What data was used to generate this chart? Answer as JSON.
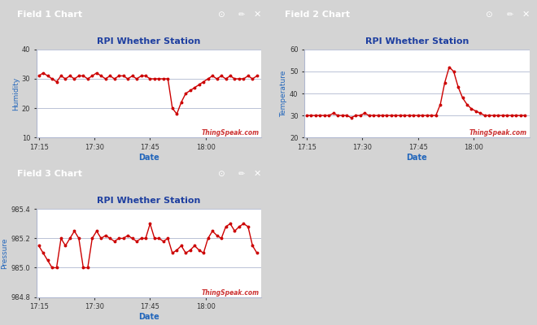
{
  "title": "RPI Whether Station",
  "xlabel": "Date",
  "chart1_ylabel": "Humidity",
  "chart2_ylabel": "Temperature",
  "chart3_ylabel": "Pressure",
  "chart1_title": "Field 1 Chart",
  "chart2_title": "Field 2 Chart",
  "chart3_title": "Field 3 Chart",
  "watermark": "ThingSpeak.com",
  "header_color": "#1e3fa0",
  "header_text_color": "#ffffff",
  "line_color": "#cc0000",
  "grid_color": "#b0b8d0",
  "background_color": "#ffffff",
  "panel_bg": "#ffffff",
  "outer_bg": "#d4d4d4",
  "ylabel_color": "#2266bb",
  "xlabel_color": "#2266bb",
  "title_color": "#1e3fa0",
  "watermark_color": "#cc3333",
  "xtick_labels": [
    "17:15",
    "17:30",
    "17:45",
    "18:00"
  ],
  "xtick_positions": [
    0.0,
    0.25,
    0.5,
    0.75
  ],
  "humidity_ylim": [
    10,
    40
  ],
  "humidity_yticks": [
    10,
    20,
    30,
    40
  ],
  "temperature_ylim": [
    20,
    60
  ],
  "temperature_yticks": [
    20,
    30,
    40,
    50,
    60
  ],
  "pressure_ylim": [
    984.8,
    985.4
  ],
  "pressure_yticks": [
    984.8,
    985.0,
    985.2,
    985.4
  ],
  "humidity_x": [
    0.0,
    0.02,
    0.04,
    0.06,
    0.08,
    0.1,
    0.12,
    0.14,
    0.16,
    0.18,
    0.2,
    0.22,
    0.24,
    0.26,
    0.28,
    0.3,
    0.32,
    0.34,
    0.36,
    0.38,
    0.4,
    0.42,
    0.44,
    0.46,
    0.48,
    0.5,
    0.52,
    0.54,
    0.56,
    0.58,
    0.6,
    0.62,
    0.64,
    0.66,
    0.68,
    0.7,
    0.72,
    0.74,
    0.76,
    0.78,
    0.8,
    0.82,
    0.84,
    0.86,
    0.88,
    0.9,
    0.92,
    0.94,
    0.96,
    0.98
  ],
  "humidity_y": [
    31,
    32,
    31,
    30,
    29,
    31,
    30,
    31,
    30,
    31,
    31,
    30,
    31,
    32,
    31,
    30,
    31,
    30,
    31,
    31,
    30,
    31,
    30,
    31,
    31,
    30,
    30,
    30,
    30,
    30,
    20,
    18,
    22,
    25,
    26,
    27,
    28,
    29,
    30,
    31,
    30,
    31,
    30,
    31,
    30,
    30,
    30,
    31,
    30,
    31
  ],
  "temperature_x": [
    0.0,
    0.02,
    0.04,
    0.06,
    0.08,
    0.1,
    0.12,
    0.14,
    0.16,
    0.18,
    0.2,
    0.22,
    0.24,
    0.26,
    0.28,
    0.3,
    0.32,
    0.34,
    0.36,
    0.38,
    0.4,
    0.42,
    0.44,
    0.46,
    0.48,
    0.5,
    0.52,
    0.54,
    0.56,
    0.58,
    0.6,
    0.62,
    0.64,
    0.66,
    0.68,
    0.7,
    0.72,
    0.74,
    0.76,
    0.78,
    0.8,
    0.82,
    0.84,
    0.86,
    0.88,
    0.9,
    0.92,
    0.94,
    0.96,
    0.98
  ],
  "temperature_y": [
    30,
    30,
    30,
    30,
    30,
    30,
    31,
    30,
    30,
    30,
    29,
    30,
    30,
    31,
    30,
    30,
    30,
    30,
    30,
    30,
    30,
    30,
    30,
    30,
    30,
    30,
    30,
    30,
    30,
    30,
    35,
    45,
    52,
    50,
    43,
    38,
    35,
    33,
    32,
    31,
    30,
    30,
    30,
    30,
    30,
    30,
    30,
    30,
    30,
    30
  ],
  "pressure_x": [
    0.0,
    0.02,
    0.04,
    0.06,
    0.08,
    0.1,
    0.12,
    0.14,
    0.16,
    0.18,
    0.2,
    0.22,
    0.24,
    0.26,
    0.28,
    0.3,
    0.32,
    0.34,
    0.36,
    0.38,
    0.4,
    0.42,
    0.44,
    0.46,
    0.48,
    0.5,
    0.52,
    0.54,
    0.56,
    0.58,
    0.6,
    0.62,
    0.64,
    0.66,
    0.68,
    0.7,
    0.72,
    0.74,
    0.76,
    0.78,
    0.8,
    0.82,
    0.84,
    0.86,
    0.88,
    0.9,
    0.92,
    0.94,
    0.96,
    0.98
  ],
  "pressure_y": [
    985.15,
    985.1,
    985.05,
    985.0,
    985.0,
    985.2,
    985.15,
    985.2,
    985.25,
    985.2,
    985.0,
    985.0,
    985.2,
    985.25,
    985.2,
    985.22,
    985.2,
    985.18,
    985.2,
    985.2,
    985.22,
    985.2,
    985.18,
    985.2,
    985.2,
    985.3,
    985.2,
    985.2,
    985.18,
    985.2,
    985.1,
    985.12,
    985.15,
    985.1,
    985.12,
    985.15,
    985.12,
    985.1,
    985.2,
    985.25,
    985.22,
    985.2,
    985.28,
    985.3,
    985.25,
    985.28,
    985.3,
    985.28,
    985.15,
    985.1
  ]
}
